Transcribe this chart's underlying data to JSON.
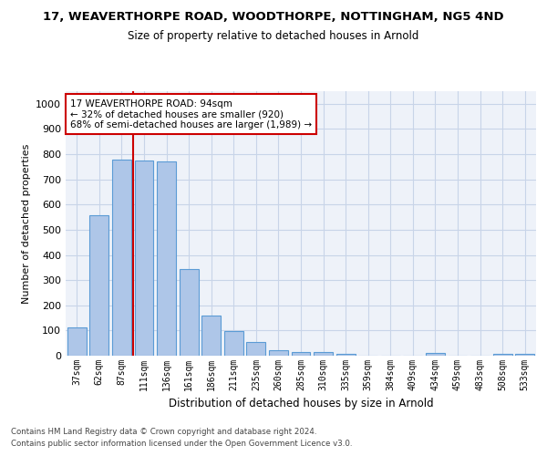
{
  "title": "17, WEAVERTHORPE ROAD, WOODTHORPE, NOTTINGHAM, NG5 4ND",
  "subtitle": "Size of property relative to detached houses in Arnold",
  "xlabel": "Distribution of detached houses by size in Arnold",
  "ylabel": "Number of detached properties",
  "bar_labels": [
    "37sqm",
    "62sqm",
    "87sqm",
    "111sqm",
    "136sqm",
    "161sqm",
    "186sqm",
    "211sqm",
    "235sqm",
    "260sqm",
    "285sqm",
    "310sqm",
    "335sqm",
    "359sqm",
    "384sqm",
    "409sqm",
    "434sqm",
    "459sqm",
    "483sqm",
    "508sqm",
    "533sqm"
  ],
  "bar_values": [
    113,
    557,
    780,
    775,
    770,
    345,
    160,
    97,
    53,
    20,
    14,
    14,
    8,
    0,
    0,
    0,
    10,
    0,
    0,
    8,
    8
  ],
  "bar_color": "#aec6e8",
  "bar_edge_color": "#5b9bd5",
  "annotation_text": "17 WEAVERTHORPE ROAD: 94sqm\n← 32% of detached houses are smaller (920)\n68% of semi-detached houses are larger (1,989) →",
  "annotation_box_color": "#ffffff",
  "annotation_box_edge_color": "#cc0000",
  "line_color": "#cc0000",
  "line_x_index": 2.5,
  "ylim": [
    0,
    1050
  ],
  "yticks": [
    0,
    100,
    200,
    300,
    400,
    500,
    600,
    700,
    800,
    900,
    1000
  ],
  "footer_line1": "Contains HM Land Registry data © Crown copyright and database right 2024.",
  "footer_line2": "Contains public sector information licensed under the Open Government Licence v3.0.",
  "bg_color": "#eef2f9",
  "grid_color": "#c8d4e8"
}
